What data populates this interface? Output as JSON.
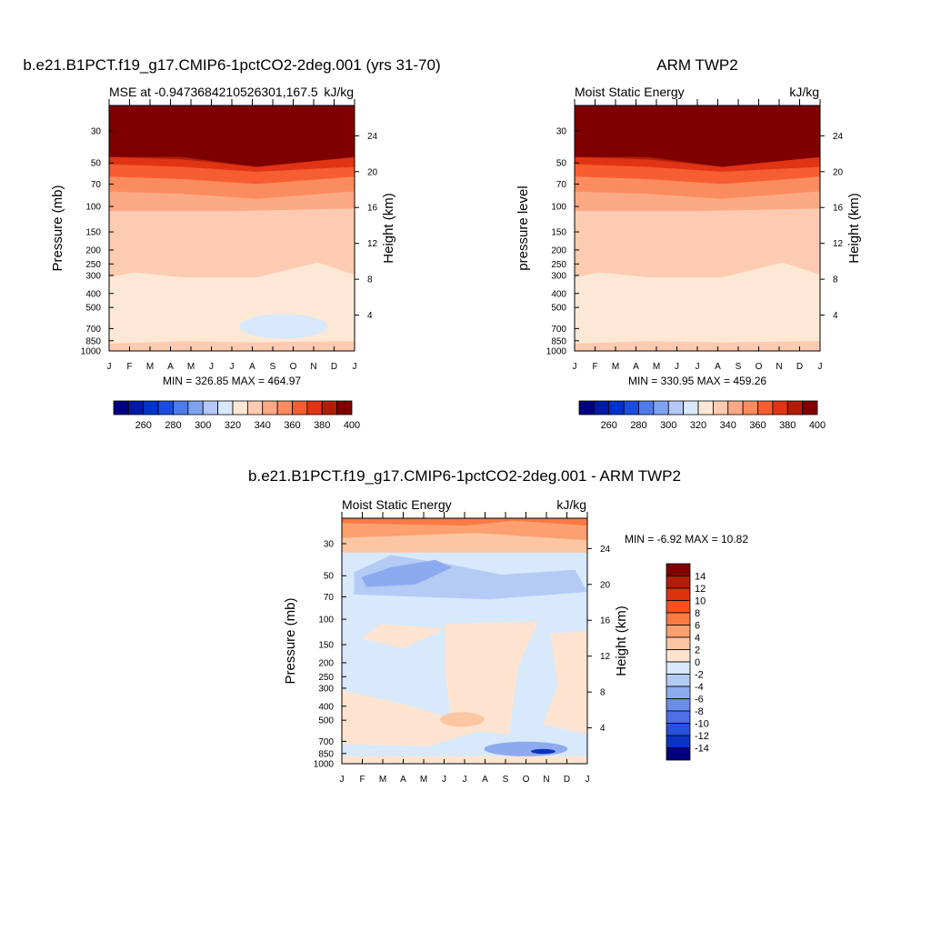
{
  "chart_data": [
    {
      "type": "contour",
      "title": "b.e21.B1PCT.f19_g17.CMIP6-1pctCO2-2deg.001 (yrs 31-70)",
      "left_label": "MSE at -0.9473684210526301,167.5",
      "right_label": "kJ/kg",
      "ylabel": "Pressure (mb)",
      "ylabel_right": "Height (km)",
      "xticks": [
        "J",
        "F",
        "M",
        "A",
        "M",
        "J",
        "J",
        "A",
        "S",
        "O",
        "N",
        "D",
        "J"
      ],
      "yticks": [
        "30",
        "50",
        "70",
        "100",
        "150",
        "200",
        "250",
        "300",
        "400",
        "500",
        "700",
        "850",
        "1000"
      ],
      "ytick_values": [
        30,
        50,
        70,
        100,
        150,
        200,
        250,
        300,
        400,
        500,
        700,
        850,
        1000
      ],
      "right_ticks": [
        "24",
        "20",
        "16",
        "12",
        "8",
        "4"
      ],
      "right_tick_values": [
        24,
        20,
        16,
        12,
        8,
        4
      ],
      "ylim": [
        1000,
        20
      ],
      "stats": "MIN = 326.85 MAX = 464.97",
      "colorbar": {
        "orientation": "horizontal",
        "levels": [
          250,
          260,
          270,
          280,
          290,
          300,
          310,
          320,
          330,
          340,
          350,
          360,
          370,
          380,
          390,
          400
        ],
        "tick_labels": [
          "260",
          "280",
          "300",
          "320",
          "340",
          "360",
          "380",
          "400"
        ]
      }
    },
    {
      "type": "contour",
      "title": "ARM TWP2",
      "left_label": "Moist Static Energy",
      "right_label": "kJ/kg",
      "ylabel": "pressure level",
      "ylabel_right": "Height (km)",
      "xticks": [
        "J",
        "F",
        "M",
        "A",
        "M",
        "J",
        "J",
        "A",
        "S",
        "O",
        "N",
        "D",
        "J"
      ],
      "yticks": [
        "30",
        "50",
        "70",
        "100",
        "150",
        "200",
        "250",
        "300",
        "400",
        "500",
        "700",
        "850",
        "1000"
      ],
      "ytick_values": [
        30,
        50,
        70,
        100,
        150,
        200,
        250,
        300,
        400,
        500,
        700,
        850,
        1000
      ],
      "right_ticks": [
        "24",
        "20",
        "16",
        "12",
        "8",
        "4"
      ],
      "right_tick_values": [
        24,
        20,
        16,
        12,
        8,
        4
      ],
      "ylim": [
        1000,
        20
      ],
      "stats": "MIN = 330.95 MAX = 459.26",
      "colorbar": {
        "orientation": "horizontal",
        "levels": [
          250,
          260,
          270,
          280,
          290,
          300,
          310,
          320,
          330,
          340,
          350,
          360,
          370,
          380,
          390,
          400
        ],
        "tick_labels": [
          "260",
          "280",
          "300",
          "320",
          "340",
          "360",
          "380",
          "400"
        ]
      }
    },
    {
      "type": "contour",
      "title": "b.e21.B1PCT.f19_g17.CMIP6-1pctCO2-2deg.001 - ARM TWP2",
      "left_label": "Moist Static Energy",
      "right_label": "kJ/kg",
      "ylabel": "Pressure (mb)",
      "ylabel_right": "Height (km)",
      "xticks": [
        "J",
        "F",
        "M",
        "A",
        "M",
        "J",
        "J",
        "A",
        "S",
        "O",
        "N",
        "D",
        "J"
      ],
      "yticks": [
        "30",
        "50",
        "70",
        "100",
        "150",
        "200",
        "250",
        "300",
        "400",
        "500",
        "700",
        "850",
        "1000"
      ],
      "ytick_values": [
        30,
        50,
        70,
        100,
        150,
        200,
        250,
        300,
        400,
        500,
        700,
        850,
        1000
      ],
      "right_ticks": [
        "24",
        "20",
        "16",
        "12",
        "8",
        "4"
      ],
      "right_tick_values": [
        24,
        20,
        16,
        12,
        8,
        4
      ],
      "ylim": [
        1000,
        20
      ],
      "stats": "MIN =  -6.92 MAX =  10.82",
      "colorbar": {
        "orientation": "vertical",
        "levels": [
          16,
          14,
          12,
          10,
          8,
          6,
          4,
          2,
          0,
          -2,
          -4,
          -6,
          -8,
          -10,
          -12,
          -14,
          -16
        ],
        "tick_labels": [
          "14",
          "12",
          "10",
          "8",
          "6",
          "4",
          "2",
          "0",
          "-2",
          "-4",
          "-6",
          "-8",
          "-10",
          "-12",
          "-14"
        ]
      }
    }
  ],
  "colors": {
    "warm_scale": [
      "#00007f",
      "#0019a6",
      "#0033cc",
      "#1a4ce0",
      "#4d7ce8",
      "#80a3f0",
      "#b3c8f7",
      "#d9e8fb",
      "#fde8d6",
      "#fdcbb1",
      "#fcaa85",
      "#fb8c60",
      "#f65e32",
      "#e03414",
      "#b01e06",
      "#7e0000"
    ],
    "diff_scale": [
      "#7e0000",
      "#b01e06",
      "#dd310f",
      "#f5501e",
      "#f97a45",
      "#fca070",
      "#fdc6a2",
      "#fee4d0",
      "#d7e9fb",
      "#b3cbf5",
      "#8daaf0",
      "#6a8cea",
      "#4a6fe6",
      "#2752db",
      "#0a33c0",
      "#00007f"
    ]
  }
}
